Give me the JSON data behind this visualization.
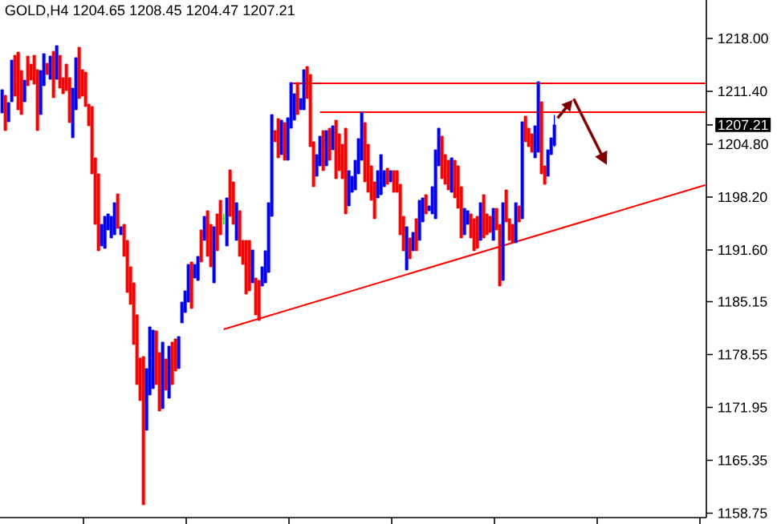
{
  "chart_data": {
    "type": "candlestick",
    "title": "GOLD,H4  1204.65 1208.45 1204.47 1207.21",
    "categories": [
      null,
      null,
      null,
      null,
      null,
      null,
      null,
      null,
      null,
      null,
      null,
      null,
      null,
      null,
      null,
      null,
      null,
      null,
      null,
      null,
      null,
      null,
      null,
      null,
      null,
      null,
      null,
      null,
      null,
      null,
      null,
      null,
      null,
      null,
      null,
      null,
      null,
      null,
      null,
      null,
      null,
      null,
      null,
      null,
      null,
      null,
      null,
      null,
      null,
      null,
      null,
      null,
      null,
      null,
      null,
      null,
      null,
      null,
      null,
      null,
      null,
      null,
      null,
      null,
      null,
      null,
      null,
      null,
      null,
      null,
      null,
      null,
      null,
      null,
      null,
      null,
      null,
      null,
      null,
      null,
      null,
      null,
      null,
      null,
      null,
      null,
      null,
      null,
      null,
      null,
      null,
      null,
      null,
      null,
      null,
      null,
      null,
      null,
      null,
      null,
      null,
      null,
      null,
      null,
      null,
      null,
      null,
      null,
      null,
      null,
      null,
      null,
      null,
      null,
      null,
      null,
      null,
      null,
      null,
      null,
      null,
      null,
      null,
      null,
      null,
      null,
      null,
      null,
      null,
      null,
      null,
      null,
      null,
      null,
      null,
      null,
      null,
      null,
      null,
      null,
      null,
      null,
      null,
      null,
      null,
      null,
      null,
      null,
      null,
      null,
      null,
      null,
      null,
      null,
      null,
      null,
      null,
      null,
      null,
      null,
      null,
      null,
      null,
      null,
      null,
      null,
      null,
      null,
      null,
      null,
      null,
      null,
      null,
      null,
      null,
      null,
      null,
      null,
      null,
      null,
      null,
      null,
      null,
      null,
      null,
      null,
      null,
      null,
      null,
      null,
      null,
      null,
      null,
      null,
      null,
      null,
      null,
      null,
      null,
      null,
      null,
      null,
      null,
      null,
      null,
      null,
      null,
      null,
      null,
      null,
      null,
      null,
      null,
      null,
      null,
      null,
      null,
      null,
      null,
      null
    ],
    "ohlc": [
      [
        1208.7,
        1211.6,
        1208.7,
        1211.6
      ],
      [
        1210.9,
        1210.9,
        1206.5,
        1206.5
      ],
      [
        1207.6,
        1210.0,
        1207.6,
        1210.0
      ],
      [
        1210.1,
        1215.3,
        1210.1,
        1215.3
      ],
      [
        1215.9,
        1215.9,
        1210.8,
        1210.8
      ],
      [
        1216.3,
        1216.3,
        1209.1,
        1209.1
      ],
      [
        1214.0,
        1214.0,
        1208.5,
        1208.5
      ],
      [
        1210.1,
        1212.8,
        1210.1,
        1212.8
      ],
      [
        1215.8,
        1215.8,
        1212.1,
        1212.1
      ],
      [
        1214.8,
        1214.8,
        1212.8,
        1212.8
      ],
      [
        1215.9,
        1215.9,
        1212.3,
        1212.3
      ],
      [
        1214.1,
        1214.1,
        1206.5,
        1206.5
      ],
      [
        1208.5,
        1214.0,
        1208.5,
        1214.0
      ],
      [
        1212.1,
        1216.1,
        1212.1,
        1216.1
      ],
      [
        1214.9,
        1214.9,
        1213.5,
        1213.5
      ],
      [
        1212.9,
        1215.8,
        1212.9,
        1215.8
      ],
      [
        1216.4,
        1216.4,
        1210.6,
        1210.6
      ],
      [
        1212.9,
        1217.1,
        1212.9,
        1217.1
      ],
      [
        1215.9,
        1215.9,
        1211.8,
        1211.8
      ],
      [
        1213.1,
        1213.1,
        1211.1,
        1211.1
      ],
      [
        1214.8,
        1214.8,
        1211.5,
        1211.5
      ],
      [
        1213.1,
        1213.1,
        1207.5,
        1207.5
      ],
      [
        1205.6,
        1211.8,
        1205.6,
        1211.8
      ],
      [
        1209.1,
        1215.6,
        1209.1,
        1215.6
      ],
      [
        1216.9,
        1216.9,
        1210.5,
        1210.5
      ],
      [
        1214.1,
        1214.1,
        1210.8,
        1210.8
      ],
      [
        1213.8,
        1213.8,
        1209.5,
        1209.5
      ],
      [
        1209.8,
        1209.8,
        1207.1,
        1207.1
      ],
      [
        1209.5,
        1209.5,
        1201.1,
        1201.1
      ],
      [
        1203.1,
        1203.1,
        1194.8,
        1194.8
      ],
      [
        1201.1,
        1201.1,
        1191.5,
        1191.5
      ],
      [
        1192.1,
        1194.8,
        1192.1,
        1194.8
      ],
      [
        1191.8,
        1195.8,
        1191.8,
        1195.8
      ],
      [
        1194.1,
        1196.1,
        1194.1,
        1196.1
      ],
      [
        1193.1,
        1195.8,
        1193.1,
        1195.8
      ],
      [
        1193.5,
        1197.5,
        1193.5,
        1197.5
      ],
      [
        1198.6,
        1198.6,
        1194.3,
        1194.3
      ],
      [
        1193.5,
        1194.5,
        1193.5,
        1194.5
      ],
      [
        1194.8,
        1194.8,
        1190.8,
        1190.8
      ],
      [
        1192.8,
        1192.8,
        1186.3,
        1186.3
      ],
      [
        1189.5,
        1189.5,
        1184.8,
        1184.8
      ],
      [
        1187.5,
        1187.5,
        1179.8,
        1179.8
      ],
      [
        1183.5,
        1183.5,
        1174.8,
        1174.8
      ],
      [
        1178.1,
        1178.1,
        1172.8,
        1172.8
      ],
      [
        1178.3,
        1178.3,
        1159.8,
        1159.8
      ],
      [
        1169.1,
        1176.8,
        1169.1,
        1176.8
      ],
      [
        1173.5,
        1182.0,
        1173.5,
        1182.0
      ],
      [
        1174.3,
        1181.6,
        1174.3,
        1181.6
      ],
      [
        1181.5,
        1181.5,
        1174.8,
        1174.8
      ],
      [
        1178.8,
        1178.8,
        1171.5,
        1171.5
      ],
      [
        1171.8,
        1180.1,
        1171.8,
        1180.1
      ],
      [
        1178.0,
        1178.0,
        1174.1,
        1174.1
      ],
      [
        1173.1,
        1179.6,
        1173.1,
        1179.6
      ],
      [
        1180.1,
        1180.1,
        1174.8,
        1174.8
      ],
      [
        1180.5,
        1180.5,
        1176.5,
        1176.5
      ],
      [
        1176.8,
        1180.8,
        1176.8,
        1180.8
      ],
      [
        1182.5,
        1185.1,
        1182.5,
        1185.1
      ],
      [
        1183.8,
        1186.5,
        1183.8,
        1186.5
      ],
      [
        1185.1,
        1189.8,
        1185.1,
        1189.8
      ],
      [
        1190.1,
        1190.1,
        1184.3,
        1184.3
      ],
      [
        1188.1,
        1189.8,
        1188.1,
        1189.8
      ],
      [
        1187.8,
        1190.8,
        1187.8,
        1190.8
      ],
      [
        1194.1,
        1194.1,
        1190.1,
        1190.1
      ],
      [
        1192.8,
        1195.8,
        1192.8,
        1195.8
      ],
      [
        1196.5,
        1196.5,
        1190.8,
        1190.8
      ],
      [
        1194.8,
        1194.8,
        1189.5,
        1189.5
      ],
      [
        1187.5,
        1194.5,
        1187.5,
        1194.5
      ],
      [
        1196.1,
        1196.1,
        1191.5,
        1191.5
      ],
      [
        1197.8,
        1197.8,
        1193.5,
        1193.5
      ],
      [
        1195.5,
        1196.1,
        1194.8,
        1195.5
      ],
      [
        1192.1,
        1198.1,
        1192.1,
        1198.1
      ],
      [
        1201.6,
        1201.6,
        1195.8,
        1195.8
      ],
      [
        1200.1,
        1200.1,
        1194.8,
        1194.8
      ],
      [
        1192.8,
        1197.5,
        1192.8,
        1197.5
      ],
      [
        1196.5,
        1196.5,
        1190.8,
        1190.8
      ],
      [
        1192.8,
        1192.8,
        1189.8,
        1189.8
      ],
      [
        1192.8,
        1192.8,
        1186.1,
        1186.1
      ],
      [
        1192.8,
        1192.8,
        1186.5,
        1186.5
      ],
      [
        1187.5,
        1191.6,
        1187.5,
        1191.6
      ],
      [
        1188.1,
        1188.1,
        1183.5,
        1183.5
      ],
      [
        1187.8,
        1187.8,
        1182.8,
        1182.8
      ],
      [
        1187.1,
        1189.5,
        1187.1,
        1189.5
      ],
      [
        1187.5,
        1191.5,
        1187.5,
        1191.5
      ],
      [
        1188.8,
        1197.5,
        1188.8,
        1197.5
      ],
      [
        1195.8,
        1208.5,
        1195.8,
        1208.5
      ],
      [
        1206.5,
        1206.5,
        1205.1,
        1205.1
      ],
      [
        1208.0,
        1208.0,
        1203.1,
        1203.1
      ],
      [
        1203.5,
        1207.8,
        1203.5,
        1207.8
      ],
      [
        1207.5,
        1207.5,
        1202.8,
        1202.8
      ],
      [
        1202.8,
        1208.1,
        1202.8,
        1208.1
      ],
      [
        1206.8,
        1212.5,
        1206.8,
        1212.5
      ],
      [
        1207.8,
        1211.1,
        1207.8,
        1211.1
      ],
      [
        1212.5,
        1212.5,
        1208.5,
        1208.5
      ],
      [
        1209.1,
        1210.5,
        1209.1,
        1210.5
      ],
      [
        1209.1,
        1214.1,
        1209.1,
        1214.1
      ],
      [
        1214.5,
        1214.5,
        1210.5,
        1210.5
      ],
      [
        1213.5,
        1213.5,
        1204.5,
        1204.5
      ],
      [
        1205.1,
        1205.1,
        1199.5,
        1199.5
      ],
      [
        1200.8,
        1203.5,
        1200.8,
        1203.5
      ],
      [
        1202.1,
        1205.8,
        1202.1,
        1205.8
      ],
      [
        1206.5,
        1206.5,
        1201.5,
        1201.5
      ],
      [
        1202.1,
        1206.5,
        1202.1,
        1206.5
      ],
      [
        1206.8,
        1206.8,
        1202.8,
        1202.8
      ],
      [
        1204.1,
        1207.1,
        1204.1,
        1207.1
      ],
      [
        1207.8,
        1207.8,
        1200.5,
        1200.5
      ],
      [
        1206.1,
        1206.1,
        1201.5,
        1201.5
      ],
      [
        1204.8,
        1204.8,
        1200.5,
        1200.5
      ],
      [
        1206.8,
        1206.8,
        1196.1,
        1196.1
      ],
      [
        1197.1,
        1201.5,
        1197.1,
        1201.5
      ],
      [
        1198.8,
        1200.8,
        1198.8,
        1200.8
      ],
      [
        1199.1,
        1202.8,
        1199.1,
        1202.8
      ],
      [
        1201.1,
        1205.5,
        1201.1,
        1205.5
      ],
      [
        1202.8,
        1208.8,
        1202.8,
        1208.8
      ],
      [
        1207.5,
        1207.5,
        1200.1,
        1200.1
      ],
      [
        1204.8,
        1204.8,
        1198.8,
        1198.8
      ],
      [
        1202.1,
        1202.1,
        1197.8,
        1197.8
      ],
      [
        1200.1,
        1200.1,
        1195.5,
        1195.5
      ],
      [
        1198.1,
        1201.5,
        1198.1,
        1201.5
      ],
      [
        1198.5,
        1203.5,
        1198.5,
        1203.5
      ],
      [
        1199.5,
        1201.5,
        1199.5,
        1201.5
      ],
      [
        1201.8,
        1201.8,
        1199.8,
        1199.8
      ],
      [
        1200.1,
        1201.5,
        1200.1,
        1201.5
      ],
      [
        1201.5,
        1201.5,
        1198.8,
        1198.8
      ],
      [
        1201.5,
        1201.5,
        1198.8,
        1198.8
      ],
      [
        1199.8,
        1199.8,
        1193.5,
        1193.5
      ],
      [
        1195.8,
        1195.8,
        1191.5,
        1191.5
      ],
      [
        1189.1,
        1194.5,
        1189.1,
        1194.5
      ],
      [
        1193.1,
        1193.1,
        1190.5,
        1190.5
      ],
      [
        1191.5,
        1193.8,
        1191.5,
        1193.8
      ],
      [
        1195.5,
        1195.5,
        1191.5,
        1191.5
      ],
      [
        1192.8,
        1197.8,
        1192.8,
        1197.8
      ],
      [
        1195.1,
        1198.1,
        1195.1,
        1198.1
      ],
      [
        1198.5,
        1198.5,
        1196.1,
        1196.1
      ],
      [
        1196.5,
        1197.1,
        1196.5,
        1197.1
      ],
      [
        1196.1,
        1199.5,
        1196.1,
        1199.5
      ],
      [
        1195.5,
        1204.1,
        1195.5,
        1204.1
      ],
      [
        1202.1,
        1206.8,
        1202.1,
        1206.8
      ],
      [
        1205.8,
        1205.8,
        1200.5,
        1200.5
      ],
      [
        1203.5,
        1203.5,
        1199.8,
        1199.8
      ],
      [
        1202.8,
        1202.8,
        1199.1,
        1199.1
      ],
      [
        1198.8,
        1203.1,
        1198.8,
        1203.1
      ],
      [
        1202.8,
        1202.8,
        1198.1,
        1198.1
      ],
      [
        1202.1,
        1202.1,
        1196.8,
        1196.8
      ],
      [
        1199.5,
        1199.5,
        1193.1,
        1193.1
      ],
      [
        1193.5,
        1196.8,
        1193.5,
        1196.8
      ],
      [
        1194.8,
        1196.5,
        1194.8,
        1196.5
      ],
      [
        1196.1,
        1196.1,
        1193.1,
        1193.1
      ],
      [
        1195.5,
        1195.5,
        1191.5,
        1191.5
      ],
      [
        1195.8,
        1195.8,
        1191.8,
        1191.8
      ],
      [
        1192.8,
        1197.5,
        1192.8,
        1197.5
      ],
      [
        1198.5,
        1198.5,
        1193.1,
        1193.1
      ],
      [
        1196.1,
        1196.1,
        1193.5,
        1193.5
      ],
      [
        1195.8,
        1195.8,
        1193.8,
        1193.8
      ],
      [
        1192.8,
        1196.8,
        1192.8,
        1196.8
      ],
      [
        1196.8,
        1196.8,
        1194.1,
        1194.1
      ],
      [
        1194.8,
        1194.8,
        1187.1,
        1187.1
      ],
      [
        1187.8,
        1197.5,
        1187.8,
        1197.5
      ],
      [
        1199.1,
        1199.1,
        1195.1,
        1195.1
      ],
      [
        1195.5,
        1195.5,
        1192.8,
        1192.8
      ],
      [
        1194.8,
        1194.8,
        1192.5,
        1192.5
      ],
      [
        1192.5,
        1197.5,
        1192.5,
        1197.5
      ],
      [
        1197.1,
        1197.1,
        1195.1,
        1195.1
      ],
      [
        1195.5,
        1207.6,
        1195.5,
        1207.6
      ],
      [
        1208.3,
        1208.3,
        1205.1,
        1205.1
      ],
      [
        1206.8,
        1206.8,
        1204.5,
        1204.5
      ],
      [
        1206.1,
        1206.1,
        1203.8,
        1203.8
      ],
      [
        1203.1,
        1207.1,
        1203.1,
        1207.1
      ],
      [
        1203.8,
        1212.6,
        1203.8,
        1212.6
      ],
      [
        1210.1,
        1210.1,
        1201.1,
        1201.1
      ],
      [
        1202.1,
        1202.1,
        1199.8,
        1199.8
      ],
      [
        1200.8,
        1204.1,
        1200.8,
        1204.1
      ],
      [
        1203.5,
        1205.6,
        1203.5,
        1205.6
      ],
      [
        1204.65,
        1208.45,
        1204.47,
        1207.21
      ],
      null,
      null,
      null,
      null,
      null,
      null,
      null,
      null,
      null,
      null,
      null,
      null,
      null,
      null,
      null,
      null,
      null,
      null,
      null,
      null,
      null,
      null,
      null,
      null,
      null,
      null,
      null,
      null,
      null,
      null,
      null,
      null,
      null,
      null,
      null,
      null,
      null,
      null,
      null,
      null,
      null,
      null,
      null,
      null,
      null,
      null,
      null
    ],
    "colors": [
      "#0000ff",
      "#ff0000",
      "#0000ff",
      "#0000ff",
      "#ff0000",
      "#ff0000",
      "#ff0000",
      "#0000ff",
      "#ff0000",
      "#ff0000",
      "#ff0000",
      "#ff0000",
      "#0000ff",
      "#0000ff",
      "#ff0000",
      "#0000ff",
      "#ff0000",
      "#0000ff",
      "#ff0000",
      "#ff0000",
      "#ff0000",
      "#ff0000",
      "#0000ff",
      "#0000ff",
      "#ff0000",
      "#ff0000",
      "#ff0000",
      "#ff0000",
      "#ff0000",
      "#ff0000",
      "#ff0000",
      "#0000ff",
      "#0000ff",
      "#0000ff",
      "#0000ff",
      "#0000ff",
      "#ff0000",
      "#0000ff",
      "#ff0000",
      "#ff0000",
      "#ff0000",
      "#ff0000",
      "#ff0000",
      "#ff0000",
      "#ff0000",
      "#0000ff",
      "#0000ff",
      "#0000ff",
      "#ff0000",
      "#ff0000",
      "#0000ff",
      "#ff0000",
      "#0000ff",
      "#ff0000",
      "#ff0000",
      "#0000ff",
      "#0000ff",
      "#0000ff",
      "#0000ff",
      "#ff0000",
      "#0000ff",
      "#0000ff",
      "#ff0000",
      "#0000ff",
      "#ff0000",
      "#ff0000",
      "#0000ff",
      "#ff0000",
      "#ff0000",
      "#00ff00",
      "#0000ff",
      "#ff0000",
      "#ff0000",
      "#0000ff",
      "#ff0000",
      "#ff0000",
      "#ff0000",
      "#ff0000",
      "#0000ff",
      "#ff0000",
      "#ff0000",
      "#0000ff",
      "#0000ff",
      "#0000ff",
      "#0000ff",
      "#ff0000",
      "#ff0000",
      "#0000ff",
      "#ff0000",
      "#0000ff",
      "#0000ff",
      "#0000ff",
      "#ff0000",
      "#0000ff",
      "#0000ff",
      "#ff0000",
      "#ff0000",
      "#ff0000",
      "#0000ff",
      "#0000ff",
      "#ff0000",
      "#0000ff",
      "#ff0000",
      "#0000ff",
      "#ff0000",
      "#ff0000",
      "#ff0000",
      "#ff0000",
      "#0000ff",
      "#0000ff",
      "#0000ff",
      "#0000ff",
      "#0000ff",
      "#ff0000",
      "#ff0000",
      "#ff0000",
      "#ff0000",
      "#0000ff",
      "#0000ff",
      "#0000ff",
      "#ff0000",
      "#0000ff",
      "#ff0000",
      "#ff0000",
      "#ff0000",
      "#ff0000",
      "#0000ff",
      "#ff0000",
      "#0000ff",
      "#ff0000",
      "#0000ff",
      "#0000ff",
      "#ff0000",
      "#0000ff",
      "#0000ff",
      "#0000ff",
      "#0000ff",
      "#ff0000",
      "#ff0000",
      "#ff0000",
      "#0000ff",
      "#ff0000",
      "#ff0000",
      "#ff0000",
      "#0000ff",
      "#0000ff",
      "#ff0000",
      "#ff0000",
      "#ff0000",
      "#0000ff",
      "#ff0000",
      "#ff0000",
      "#ff0000",
      "#0000ff",
      "#ff0000",
      "#ff0000",
      "#0000ff",
      "#ff0000",
      "#ff0000",
      "#ff0000",
      "#0000ff",
      "#ff0000",
      "#0000ff",
      "#ff0000",
      "#ff0000",
      "#ff0000",
      "#0000ff",
      "#0000ff",
      "#ff0000",
      "#ff0000",
      "#0000ff",
      "#0000ff",
      "#0000ff",
      null,
      null,
      null,
      null,
      null,
      null,
      null,
      null,
      null,
      null,
      null,
      null,
      null,
      null,
      null,
      null,
      null,
      null,
      null,
      null,
      null,
      null,
      null,
      null,
      null,
      null,
      null,
      null,
      null,
      null,
      null,
      null,
      null,
      null,
      null,
      null,
      null,
      null,
      null,
      null,
      null,
      null,
      null,
      null,
      null,
      null,
      null
    ],
    "series": [
      {
        "type": "line",
        "color": "#ff0000",
        "values": [
          null,
          null,
          null,
          null,
          null,
          null,
          null,
          null,
          null,
          null,
          null,
          null,
          null,
          null,
          null,
          null,
          null,
          null,
          null,
          null,
          null,
          null,
          null,
          null,
          null,
          null,
          null,
          null,
          null,
          null,
          null,
          null,
          null,
          null,
          null,
          null,
          null,
          null,
          null,
          null,
          null,
          null,
          null,
          null,
          null,
          null,
          null,
          null,
          null,
          null,
          null,
          null,
          null,
          null,
          null,
          null,
          null,
          null,
          null,
          null,
          null,
          null,
          null,
          null,
          null,
          null,
          null,
          null,
          null,
          null,
          null,
          null,
          null,
          null,
          null,
          null,
          null,
          null,
          null,
          null,
          null,
          null,
          null,
          null,
          null,
          null,
          null,
          null,
          null,
          null,
          1212.4,
          null,
          null,
          null,
          null,
          null,
          null,
          null,
          null,
          null,
          null,
          null,
          null,
          null,
          null,
          null,
          null,
          null,
          null,
          null,
          null,
          null,
          null,
          null,
          null,
          null,
          null,
          null,
          null,
          null,
          null,
          null,
          null,
          null,
          null,
          null,
          null,
          null,
          null,
          null,
          null,
          null,
          null,
          null,
          null,
          null,
          null,
          null,
          null,
          null,
          null,
          null,
          null,
          null,
          null,
          null,
          null,
          null,
          null,
          null,
          null,
          null,
          null,
          null,
          null,
          null,
          null,
          null,
          null,
          null,
          null,
          null,
          null,
          null,
          null,
          null,
          null,
          null,
          null,
          null,
          null,
          null,
          null,
          null,
          null,
          null,
          null,
          null,
          null,
          null,
          null,
          null,
          null,
          null,
          null,
          null,
          null,
          null,
          null,
          null,
          null,
          null,
          null,
          null,
          null,
          null,
          null,
          null,
          null,
          null,
          null,
          null,
          null,
          null,
          null,
          null,
          null,
          null,
          null,
          null,
          null,
          null,
          null,
          null,
          null,
          null,
          null,
          null,
          null,
          1212.4
        ]
      },
      {
        "type": "line",
        "color": "#ff0000",
        "values": [
          null,
          null,
          null,
          null,
          null,
          null,
          null,
          null,
          null,
          null,
          null,
          null,
          null,
          null,
          null,
          null,
          null,
          null,
          null,
          null,
          null,
          null,
          null,
          null,
          null,
          null,
          null,
          null,
          null,
          null,
          null,
          null,
          null,
          null,
          null,
          null,
          null,
          null,
          null,
          null,
          null,
          null,
          null,
          null,
          null,
          null,
          null,
          null,
          null,
          null,
          null,
          null,
          null,
          null,
          null,
          null,
          null,
          null,
          null,
          null,
          null,
          null,
          null,
          null,
          null,
          null,
          null,
          null,
          null,
          null,
          null,
          null,
          null,
          null,
          null,
          null,
          null,
          null,
          null,
          null,
          null,
          null,
          null,
          null,
          null,
          null,
          null,
          null,
          null,
          null,
          null,
          null,
          null,
          null,
          null,
          null,
          null,
          null,
          null,
          1208.8,
          null,
          null,
          null,
          null,
          null,
          null,
          null,
          null,
          null,
          null,
          null,
          null,
          null,
          null,
          null,
          null,
          null,
          null,
          null,
          null,
          null,
          null,
          null,
          null,
          null,
          null,
          null,
          null,
          null,
          null,
          null,
          null,
          null,
          null,
          null,
          null,
          null,
          null,
          null,
          null,
          null,
          null,
          null,
          null,
          null,
          null,
          null,
          null,
          null,
          null,
          null,
          null,
          null,
          null,
          null,
          null,
          null,
          null,
          null,
          null,
          null,
          null,
          null,
          null,
          null,
          null,
          null,
          null,
          null,
          null,
          null,
          null,
          null,
          null,
          null,
          null,
          null,
          null,
          null,
          null,
          null,
          null,
          null,
          null,
          null,
          null,
          null,
          null,
          null,
          null,
          null,
          null,
          null,
          null,
          null,
          null,
          null,
          null,
          null,
          null,
          null,
          null,
          null,
          null,
          null,
          null,
          null,
          null,
          null,
          null,
          null,
          null,
          null,
          null,
          null,
          null,
          null,
          null,
          null,
          1208.8
        ]
      },
      {
        "type": "line",
        "color": "#ff0000",
        "values": [
          null,
          null,
          null,
          null,
          null,
          null,
          null,
          null,
          null,
          null,
          null,
          null,
          null,
          null,
          null,
          null,
          null,
          null,
          null,
          null,
          null,
          null,
          null,
          null,
          null,
          null,
          null,
          null,
          null,
          null,
          null,
          null,
          null,
          null,
          null,
          null,
          null,
          null,
          null,
          null,
          null,
          null,
          null,
          null,
          null,
          null,
          null,
          null,
          null,
          null,
          null,
          null,
          null,
          null,
          null,
          null,
          null,
          null,
          null,
          null,
          null,
          null,
          null,
          null,
          null,
          null,
          null,
          null,
          null,
          1181.7,
          null,
          null,
          null,
          null,
          null,
          null,
          null,
          null,
          null,
          null,
          null,
          null,
          null,
          null,
          null,
          null,
          null,
          null,
          null,
          null,
          null,
          null,
          null,
          null,
          null,
          null,
          null,
          null,
          null,
          null,
          null,
          null,
          null,
          null,
          null,
          null,
          null,
          null,
          null,
          null,
          null,
          null,
          null,
          null,
          null,
          null,
          null,
          null,
          null,
          null,
          null,
          null,
          null,
          null,
          null,
          null,
          null,
          null,
          null,
          null,
          null,
          null,
          null,
          null,
          null,
          null,
          null,
          null,
          null,
          null,
          null,
          null,
          null,
          null,
          null,
          null,
          null,
          null,
          null,
          null,
          null,
          null,
          null,
          null,
          null,
          null,
          null,
          null,
          null,
          null,
          null,
          null,
          null,
          null,
          null,
          null,
          null,
          null,
          null,
          null,
          null,
          null,
          null,
          null,
          null,
          null,
          null,
          null,
          null,
          null,
          null,
          null,
          null,
          null,
          null,
          null,
          null,
          null,
          null,
          null,
          null,
          null,
          null,
          null,
          null,
          null,
          null,
          null,
          null,
          null,
          null,
          null,
          null,
          null,
          null,
          null,
          null,
          null,
          null,
          null,
          null,
          null,
          null,
          null,
          null,
          null,
          null,
          null,
          null,
          1199.7
        ]
      }
    ],
    "ylim": [
      1158.2,
      1222.8
    ],
    "yticks": [
      {
        "value": 1218,
        "label": "1218.00"
      },
      {
        "value": 1211.4,
        "label": "1211.40"
      },
      {
        "value": 1204.8,
        "label": "1204.80"
      },
      {
        "value": 1198.2,
        "label": "1198.20"
      },
      {
        "value": 1191.6,
        "label": "1191.60"
      },
      1185.15,
      1178.55,
      1171.95,
      1165.35,
      1158.75,
      1207.21
    ],
    "tick_labels": "y"
  }
}
